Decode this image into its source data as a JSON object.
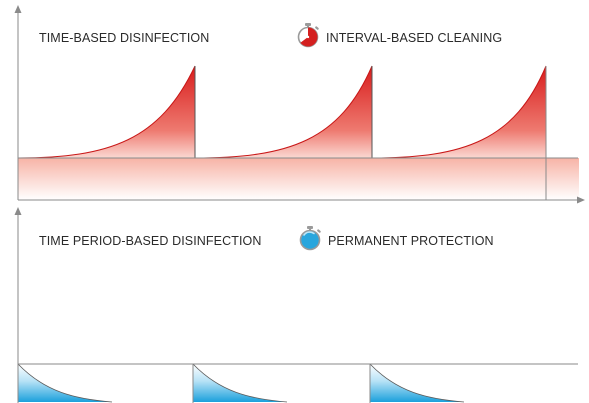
{
  "top_panel": {
    "left_label": "TIME-BASED DISINFECTION",
    "right_label": "INTERVAL-BASED CLEANING",
    "legend_icon": "stopwatch-red-icon",
    "accent_color": "#d42020"
  },
  "bottom_panel": {
    "left_label": "TIME PERIOD-BASED DISINFECTION",
    "right_label": "PERMANENT PROTECTION",
    "legend_icon": "stopwatch-blue-icon",
    "accent_color": "#29a6dd"
  },
  "axis_color": "#8a8a8a"
}
